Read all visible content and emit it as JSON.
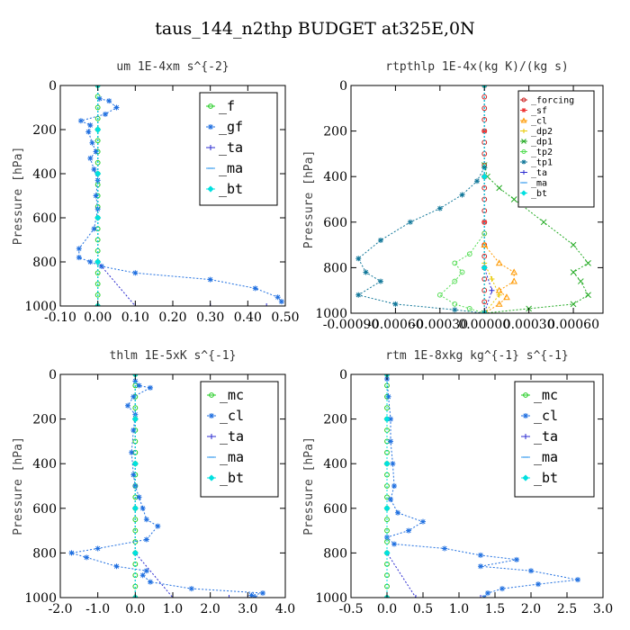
{
  "figure": {
    "title": "taus_144_n2thp  BUDGET at325E,0N"
  },
  "chart_data": [
    {
      "type": "line",
      "title": "um   1E-4xm s^{-2}",
      "ylabel": "Pressure [hPa]",
      "xlim": [
        -0.1,
        0.5
      ],
      "ylim": [
        1000,
        0
      ],
      "xticks": [
        -0.1,
        0.0,
        0.1,
        0.2,
        0.3,
        0.4,
        0.5
      ],
      "xtick_labels": [
        "-0.10",
        "0.00",
        "0.10",
        "0.20",
        "0.30",
        "0.40",
        "0.50"
      ],
      "yticks": [
        0,
        200,
        400,
        600,
        800,
        1000
      ],
      "ytick_labels": [
        "0",
        "200",
        "400",
        "600",
        "800",
        "1000"
      ],
      "legend_position": "top-right",
      "series": [
        {
          "name": "_f",
          "color": "#22cc22",
          "marker": "circle",
          "x": [
            0,
            0,
            0,
            0,
            0,
            0,
            0,
            0,
            0,
            0,
            0,
            0,
            0,
            0,
            0,
            0,
            0,
            0,
            0,
            0,
            0
          ],
          "y": [
            0,
            50,
            100,
            150,
            200,
            250,
            300,
            350,
            400,
            450,
            500,
            550,
            600,
            650,
            700,
            750,
            800,
            850,
            900,
            950,
            1000
          ]
        },
        {
          "name": "_gf",
          "color": "#1f6fe0",
          "marker": "star",
          "x": [
            0.005,
            0.03,
            0.05,
            0.02,
            -0.045,
            -0.02,
            -0.025,
            -0.015,
            -0.005,
            -0.02,
            -0.01,
            0.0,
            -0.005,
            0.0,
            -0.01,
            -0.05,
            -0.05,
            -0.02,
            0.01,
            0.1,
            0.3,
            0.42,
            0.48,
            0.49
          ],
          "y": [
            60,
            70,
            100,
            130,
            160,
            180,
            210,
            260,
            300,
            330,
            380,
            430,
            500,
            560,
            650,
            740,
            780,
            800,
            820,
            850,
            880,
            920,
            960,
            980
          ]
        },
        {
          "name": "_ta",
          "color": "#2b2bd0",
          "marker": "plus",
          "x": [
            0,
            0,
            0,
            0,
            0,
            0.1,
            0.3,
            0.45
          ],
          "y": [
            0,
            200,
            400,
            600,
            800,
            1000,
            1000,
            1000
          ]
        },
        {
          "name": "_ma",
          "color": "#3399ee",
          "marker": "dash",
          "x": [
            0,
            0,
            0,
            0,
            0,
            0
          ],
          "y": [
            0,
            200,
            400,
            600,
            800,
            1000
          ]
        },
        {
          "name": "_bt",
          "color": "#00e0e0",
          "marker": "diamond",
          "x": [
            0,
            0,
            0,
            0,
            0,
            0
          ],
          "y": [
            0,
            200,
            400,
            600,
            800,
            1000
          ]
        }
      ]
    },
    {
      "type": "line",
      "title": "rtpthlp   1E-4x(kg K)/(kg s)",
      "ylabel": "Pressure [hPa]",
      "xlim": [
        -0.0009,
        0.0008
      ],
      "ylim": [
        1000,
        0
      ],
      "xticks": [
        -0.0009,
        -0.0006,
        -0.0003,
        0.0,
        0.0003,
        0.0006
      ],
      "xtick_labels": [
        "-0.00090",
        "-0.00060",
        "-0.00030",
        "0.00000",
        "0.00030",
        "0.00060"
      ],
      "yticks": [
        0,
        200,
        400,
        600,
        800,
        1000
      ],
      "ytick_labels": [
        "0",
        "200",
        "400",
        "600",
        "800",
        "1000"
      ],
      "legend_position": "top-right",
      "series": [
        {
          "name": "_forcing",
          "color": "#cc2222",
          "marker": "circle",
          "x": [
            0,
            0,
            0,
            0,
            0,
            0,
            0,
            0,
            0,
            0,
            0,
            0,
            0,
            0,
            0,
            0,
            0,
            0,
            0,
            0,
            0
          ],
          "y": [
            0,
            50,
            100,
            150,
            200,
            250,
            300,
            350,
            400,
            450,
            500,
            550,
            600,
            650,
            700,
            750,
            800,
            850,
            900,
            950,
            1000
          ]
        },
        {
          "name": "_sf",
          "color": "#ee3333",
          "marker": "star",
          "x": [
            0,
            0,
            0,
            0,
            0,
            0
          ],
          "y": [
            0,
            200,
            400,
            600,
            800,
            1000
          ]
        },
        {
          "name": "_cl",
          "color": "#ff9900",
          "marker": "triangle",
          "x": [
            0,
            0.0001,
            0.0002,
            0.0002,
            0.0001,
            0.00015,
            0.0001,
            0
          ],
          "y": [
            700,
            780,
            820,
            860,
            900,
            930,
            960,
            1000
          ]
        },
        {
          "name": "_dp2",
          "color": "#e8c800",
          "marker": "plus",
          "x": [
            0,
            5e-05,
            0.0001,
            0
          ],
          "y": [
            780,
            850,
            920,
            1000
          ]
        },
        {
          "name": "_dp1",
          "color": "#22aa22",
          "marker": "x",
          "x": [
            0,
            2e-05,
            0.0001,
            0.0002,
            0.0004,
            0.0006,
            0.0007,
            0.0006,
            0.00065,
            0.0007,
            0.0006,
            0.0003,
            0
          ],
          "y": [
            350,
            400,
            450,
            500,
            600,
            700,
            780,
            820,
            860,
            920,
            960,
            980,
            1000
          ]
        },
        {
          "name": "_tp2",
          "color": "#55dd55",
          "marker": "circle",
          "x": [
            0,
            -0.0001,
            -0.0002,
            -0.00015,
            -0.0002,
            -0.0003,
            -0.0002,
            -0.0001,
            0
          ],
          "y": [
            650,
            740,
            780,
            820,
            860,
            920,
            960,
            980,
            1000
          ]
        },
        {
          "name": "_tp1",
          "color": "#117799",
          "marker": "star",
          "x": [
            0,
            -5e-05,
            -0.00015,
            -0.0003,
            -0.0005,
            -0.0007,
            -0.00085,
            -0.0008,
            -0.0007,
            -0.00085,
            -0.0006,
            -0.0002,
            0
          ],
          "y": [
            360,
            420,
            480,
            540,
            600,
            680,
            760,
            820,
            860,
            920,
            960,
            985,
            1000
          ]
        },
        {
          "name": "_ta",
          "color": "#2b2bd0",
          "marker": "plus",
          "x": [
            0,
            0,
            0,
            5e-05,
            0
          ],
          "y": [
            0,
            400,
            800,
            900,
            1000
          ]
        },
        {
          "name": "_ma",
          "color": "#3399ee",
          "marker": "dash",
          "x": [
            0,
            0,
            0,
            0
          ],
          "y": [
            0,
            400,
            800,
            1000
          ]
        },
        {
          "name": "_bt",
          "color": "#00e0e0",
          "marker": "diamond",
          "x": [
            0,
            0,
            0,
            0
          ],
          "y": [
            0,
            400,
            800,
            1000
          ]
        }
      ]
    },
    {
      "type": "line",
      "title": "thlm   1E-5xK s^{-1}",
      "ylabel": "Pressure [hPa]",
      "xlim": [
        -2.0,
        4.0
      ],
      "ylim": [
        1000,
        0
      ],
      "xticks": [
        -2.0,
        -1.0,
        0.0,
        1.0,
        2.0,
        3.0,
        4.0
      ],
      "xtick_labels": [
        "-2.0",
        "-1.0",
        "0.0",
        "1.0",
        "2.0",
        "3.0",
        "4.0"
      ],
      "yticks": [
        0,
        200,
        400,
        600,
        800,
        1000
      ],
      "ytick_labels": [
        "0",
        "200",
        "400",
        "600",
        "800",
        "1000"
      ],
      "legend_position": "top-right",
      "series": [
        {
          "name": "_mc",
          "color": "#22cc22",
          "marker": "circle",
          "x": [
            0,
            0,
            0,
            0,
            0,
            0,
            0,
            0,
            0,
            0,
            0,
            0,
            0,
            0,
            0,
            0,
            0,
            0,
            0,
            0,
            0
          ],
          "y": [
            0,
            50,
            100,
            150,
            200,
            250,
            300,
            350,
            400,
            450,
            500,
            550,
            600,
            650,
            700,
            750,
            800,
            850,
            900,
            950,
            1000
          ]
        },
        {
          "name": "_cl",
          "color": "#1f6fe0",
          "marker": "star",
          "x": [
            0.0,
            0.1,
            0.4,
            -0.05,
            -0.2,
            0.0,
            -0.05,
            -0.1,
            -0.05,
            0.0,
            0.1,
            0.2,
            0.3,
            0.6,
            0.3,
            -1.0,
            -1.7,
            -1.3,
            -0.5,
            0.3,
            0.2,
            0.4,
            1.5,
            3.4,
            3.1,
            3.2
          ],
          "y": [
            30,
            50,
            60,
            100,
            140,
            180,
            250,
            350,
            450,
            500,
            550,
            600,
            650,
            680,
            740,
            780,
            800,
            820,
            860,
            880,
            900,
            930,
            960,
            980,
            990,
            1000
          ]
        },
        {
          "name": "_ta",
          "color": "#2b2bd0",
          "marker": "plus",
          "x": [
            0,
            0,
            0,
            0,
            0,
            1.0,
            2.5,
            3.0
          ],
          "y": [
            0,
            200,
            400,
            600,
            800,
            1000,
            1000,
            1000
          ]
        },
        {
          "name": "_ma",
          "color": "#3399ee",
          "marker": "dash",
          "x": [
            0,
            0,
            0,
            0,
            0,
            0
          ],
          "y": [
            0,
            200,
            400,
            600,
            800,
            1000
          ]
        },
        {
          "name": "_bt",
          "color": "#00e0e0",
          "marker": "diamond",
          "x": [
            0,
            0,
            0,
            0,
            0,
            0
          ],
          "y": [
            0,
            200,
            400,
            600,
            800,
            1000
          ]
        }
      ]
    },
    {
      "type": "line",
      "title": "rtm   1E-8xkg kg^{-1} s^{-1}",
      "ylabel": "Pressure [hPa]",
      "xlim": [
        -0.5,
        3.0
      ],
      "ylim": [
        1000,
        0
      ],
      "xticks": [
        -0.5,
        0.0,
        0.5,
        1.0,
        1.5,
        2.0,
        2.5,
        3.0
      ],
      "xtick_labels": [
        "-0.5",
        "0.0",
        "0.5",
        "1.0",
        "1.5",
        "2.0",
        "2.5",
        "3.0"
      ],
      "yticks": [
        0,
        200,
        400,
        600,
        800,
        1000
      ],
      "ytick_labels": [
        "0",
        "200",
        "400",
        "600",
        "800",
        "1000"
      ],
      "legend_position": "top-right",
      "series": [
        {
          "name": "_mc",
          "color": "#22cc22",
          "marker": "circle",
          "x": [
            0,
            0,
            0,
            0,
            0,
            0,
            0,
            0,
            0,
            0,
            0,
            0,
            0,
            0,
            0,
            0,
            0,
            0,
            0,
            0,
            0
          ],
          "y": [
            0,
            50,
            100,
            150,
            200,
            250,
            300,
            350,
            400,
            450,
            500,
            550,
            600,
            650,
            700,
            750,
            800,
            850,
            900,
            950,
            1000
          ]
        },
        {
          "name": "_cl",
          "color": "#1f6fe0",
          "marker": "star",
          "x": [
            0.0,
            0.02,
            0.05,
            0.05,
            0.08,
            0.1,
            0.05,
            0.15,
            0.5,
            0.3,
            0.0,
            0.1,
            0.8,
            1.3,
            1.8,
            1.3,
            2.0,
            2.65,
            2.1,
            1.6,
            1.4,
            1.35
          ],
          "y": [
            20,
            100,
            200,
            300,
            400,
            500,
            560,
            620,
            660,
            700,
            730,
            760,
            780,
            810,
            830,
            860,
            880,
            920,
            940,
            960,
            980,
            1000
          ]
        },
        {
          "name": "_ta",
          "color": "#2b2bd0",
          "marker": "plus",
          "x": [
            0,
            0,
            0,
            0,
            0,
            0.4,
            1.0,
            1.3
          ],
          "y": [
            0,
            200,
            400,
            600,
            800,
            1000,
            1000,
            1000
          ]
        },
        {
          "name": "_ma",
          "color": "#3399ee",
          "marker": "dash",
          "x": [
            0,
            0,
            0,
            0,
            0,
            0
          ],
          "y": [
            0,
            200,
            400,
            600,
            800,
            1000
          ]
        },
        {
          "name": "_bt",
          "color": "#00e0e0",
          "marker": "diamond",
          "x": [
            0,
            0,
            0,
            0,
            0,
            0
          ],
          "y": [
            0,
            200,
            400,
            600,
            800,
            1000
          ]
        }
      ]
    }
  ]
}
